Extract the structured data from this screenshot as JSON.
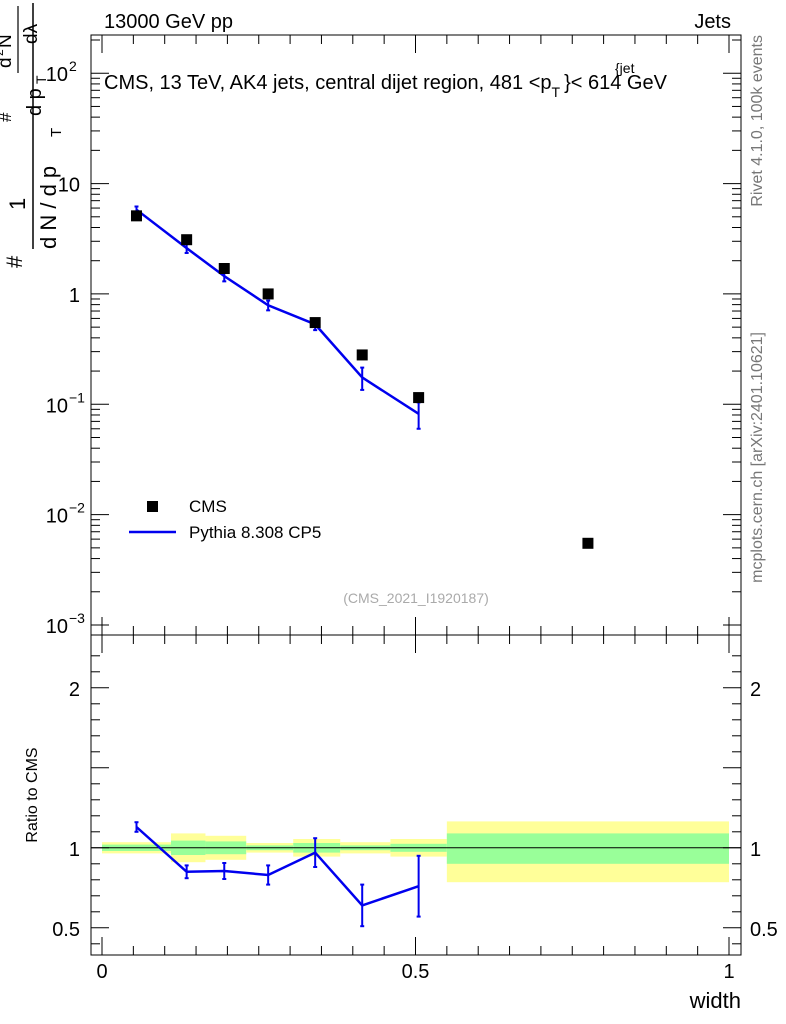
{
  "header": {
    "left": "13000 GeV pp",
    "right": "Jets"
  },
  "side_labels": {
    "rivet": "Rivet 4.1.0,  100k events",
    "mcplots": "mcplots.cern.ch [arXiv:2401.10621]"
  },
  "main_panel": {
    "title_parts": {
      "prefix": "CMS, 13 TeV, AK4 jets, central dijet region, 481 <p",
      "sup": "{jet",
      "sub": "T",
      "suffix": "}< 614 GeV"
    },
    "ylabel_tokens": [
      "#",
      "1",
      "d N / d p",
      "T",
      "#",
      "d p",
      "T",
      "d",
      "2",
      "N",
      "dλ"
    ],
    "yticks": [
      {
        "value": 100,
        "base": "10",
        "exp": "2"
      },
      {
        "value": 10,
        "base": "10",
        "exp": ""
      },
      {
        "value": 1,
        "base": "1",
        "exp": ""
      },
      {
        "value": 0.1,
        "base": "10",
        "exp": "−1"
      },
      {
        "value": 0.01,
        "base": "10",
        "exp": "−2"
      },
      {
        "value": 0.001,
        "base": "10",
        "exp": "−3"
      }
    ],
    "watermark": "(CMS_2021_I1920187)",
    "legend": [
      {
        "label": "CMS",
        "marker": "square"
      },
      {
        "label": "Pythia 8.308 CP5",
        "marker": "line"
      }
    ]
  },
  "ratio_panel": {
    "ylabel": "Ratio to CMS",
    "yticks": [
      {
        "value": 2,
        "label": "2"
      },
      {
        "value": 1,
        "label": "1"
      },
      {
        "value": 0.5,
        "label": "0.5"
      }
    ]
  },
  "x_axis": {
    "label": "width",
    "ticks": [
      {
        "value": 0,
        "label": "0"
      },
      {
        "value": 0.5,
        "label": "0.5"
      },
      {
        "value": 1,
        "label": "1"
      }
    ]
  },
  "colors": {
    "mc": "#0000ee",
    "data": "#000000",
    "band_inner": "#99ff99",
    "band_outer": "#ffff99"
  },
  "chart_data": {
    "type": "scatter",
    "x_range": [
      0,
      1
    ],
    "main_yscale": "log",
    "main_ylim": [
      0.001,
      200
    ],
    "ratio_ylim": [
      0.33,
      2.33
    ],
    "cms": {
      "x": [
        0.055,
        0.135,
        0.195,
        0.265,
        0.34,
        0.415,
        0.505,
        0.775
      ],
      "y": [
        5.1,
        3.1,
        1.7,
        1.0,
        0.55,
        0.28,
        0.115,
        0.0055
      ]
    },
    "pythia": {
      "x": [
        0.055,
        0.135,
        0.195,
        0.265,
        0.34,
        0.415,
        0.505
      ],
      "y": [
        5.8,
        2.6,
        1.45,
        0.79,
        0.53,
        0.175,
        0.082
      ],
      "yerr": [
        0.4,
        0.25,
        0.15,
        0.08,
        0.06,
        0.04,
        0.022
      ]
    },
    "ratio": {
      "x": [
        0.055,
        0.135,
        0.195,
        0.265,
        0.34,
        0.415,
        0.505
      ],
      "y": [
        1.13,
        0.85,
        0.855,
        0.83,
        0.97,
        0.64,
        0.76
      ],
      "err": [
        0.03,
        0.04,
        0.05,
        0.06,
        0.09,
        0.13,
        0.19
      ]
    },
    "bands": [
      {
        "x0": 0,
        "x1": 0.11,
        "inner": [
          0.98,
          1.02
        ],
        "outer": [
          0.965,
          1.035
        ]
      },
      {
        "x0": 0.11,
        "x1": 0.165,
        "inner": [
          0.955,
          1.045
        ],
        "outer": [
          0.91,
          1.09
        ]
      },
      {
        "x0": 0.165,
        "x1": 0.23,
        "inner": [
          0.96,
          1.04
        ],
        "outer": [
          0.925,
          1.075
        ]
      },
      {
        "x0": 0.23,
        "x1": 0.305,
        "inner": [
          0.985,
          1.015
        ],
        "outer": [
          0.97,
          1.03
        ]
      },
      {
        "x0": 0.305,
        "x1": 0.38,
        "inner": [
          0.97,
          1.03
        ],
        "outer": [
          0.945,
          1.055
        ]
      },
      {
        "x0": 0.38,
        "x1": 0.46,
        "inner": [
          0.985,
          1.015
        ],
        "outer": [
          0.965,
          1.035
        ]
      },
      {
        "x0": 0.46,
        "x1": 0.55,
        "inner": [
          0.975,
          1.025
        ],
        "outer": [
          0.945,
          1.055
        ]
      },
      {
        "x0": 0.55,
        "x1": 1.0,
        "inner": [
          0.9,
          1.09
        ],
        "outer": [
          0.785,
          1.165
        ]
      }
    ]
  }
}
